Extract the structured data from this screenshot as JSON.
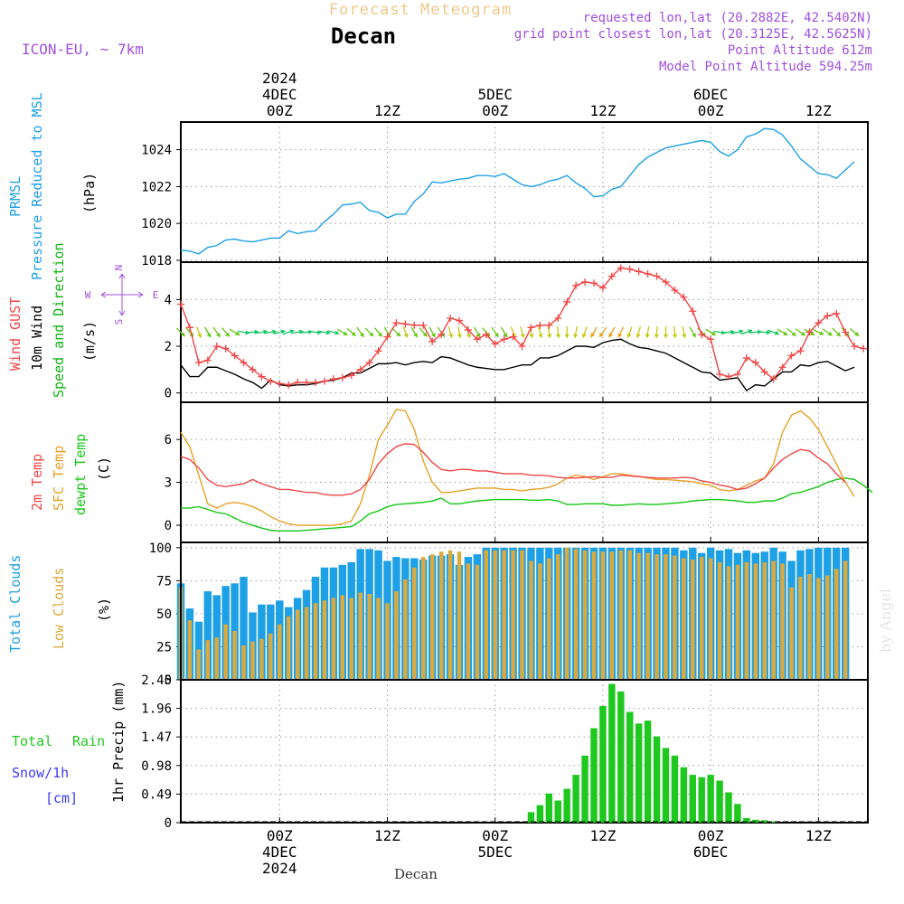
{
  "header": {
    "title": "Forecast Meteogram",
    "location": "Decan",
    "model": "ICON-EU, ~ 7km",
    "requested": "requested lon,lat (20.2882E, 42.5402N)",
    "gridpoint": "grid point closest lon,lat (20.3125E, 42.5625N)",
    "point_alt": "Point Altitude 612m",
    "model_alt": "Model Point Altitude 594.25m",
    "watermark": "by Angel",
    "bottom_name": "Decan"
  },
  "colors": {
    "pressure": "#1ea0e6",
    "gust": "#f04646",
    "wind": "#000000",
    "dir_label": "#14b414",
    "temp2m": "#f04646",
    "sfc": "#e6a028",
    "dewpt": "#14c814",
    "total_cloud": "#1ea0e6",
    "low_cloud": "#dcaa3c",
    "rain": "#1ec81e",
    "snow": "#3c3cf0",
    "compass": "#a050dc",
    "info": "#a050dc",
    "title": "#f0c88c"
  },
  "time_axis": {
    "top_ticks": [
      {
        "h": 0,
        "lines": [
          "2024",
          "4DEC",
          "00Z"
        ]
      },
      {
        "h": 12,
        "lines": [
          "12Z"
        ]
      },
      {
        "h": 24,
        "lines": [
          "5DEC",
          "00Z"
        ]
      },
      {
        "h": 36,
        "lines": [
          "12Z"
        ]
      },
      {
        "h": 48,
        "lines": [
          "6DEC",
          "00Z"
        ]
      },
      {
        "h": 60,
        "lines": [
          "12Z"
        ]
      }
    ],
    "bottom_ticks": [
      {
        "h": 0,
        "lines": [
          "00Z",
          "4DEC",
          "2024"
        ]
      },
      {
        "h": 12,
        "lines": [
          "12Z"
        ]
      },
      {
        "h": 24,
        "lines": [
          "00Z",
          "5DEC"
        ]
      },
      {
        "h": 36,
        "lines": [
          "12Z"
        ]
      },
      {
        "h": 48,
        "lines": [
          "00Z",
          "6DEC"
        ]
      },
      {
        "h": 60,
        "lines": [
          "12Z"
        ]
      }
    ]
  },
  "chart_data": [
    {
      "type": "line",
      "title": "PRMSL Pressure Reduced to MSL",
      "label_lines": [
        "PRMSL",
        "Pressure Reduced to MSL"
      ],
      "ylabel": "(hPa)",
      "ylim": [
        1017.9,
        1025.5
      ],
      "yticks": [
        1018,
        1020,
        1022,
        1024
      ],
      "x_start": -11,
      "x_step": 1,
      "series": [
        {
          "name": "PRMSL",
          "values": [
            1018.55,
            1018.5,
            1018.35,
            1018.7,
            1018.8,
            1019.1,
            1019.15,
            1019.05,
            1019.0,
            1019.1,
            1019.2,
            1019.2,
            1019.6,
            1019.45,
            1019.55,
            1019.6,
            1020.1,
            1020.5,
            1021.0,
            1021.05,
            1021.15,
            1020.7,
            1020.6,
            1020.3,
            1020.5,
            1020.5,
            1021.2,
            1021.6,
            1022.25,
            1022.2,
            1022.3,
            1022.4,
            1022.45,
            1022.6,
            1022.6,
            1022.55,
            1022.7,
            1022.4,
            1022.1,
            1022.0,
            1022.1,
            1022.3,
            1022.4,
            1022.6,
            1022.2,
            1021.9,
            1021.45,
            1021.5,
            1021.85,
            1022.0,
            1022.6,
            1023.2,
            1023.6,
            1023.85,
            1024.1,
            1024.2,
            1024.3,
            1024.4,
            1024.5,
            1024.4,
            1023.9,
            1023.65,
            1024.0,
            1024.7,
            1024.85,
            1025.15,
            1025.1,
            1024.8,
            1024.2,
            1023.5,
            1023.1,
            1022.7,
            1022.65,
            1022.45,
            1022.9,
            1023.35
          ]
        }
      ]
    },
    {
      "type": "line",
      "title": "Wind GUST / 10m Wind Speed and Direction",
      "label_lines": [
        "Wind GUST",
        "10m Wind",
        "Speed and Direction"
      ],
      "ylabel": "(m/s)",
      "ylim": [
        -0.4,
        5.6
      ],
      "yticks": [
        0,
        2,
        4
      ],
      "compass": {
        "w": "W",
        "e": "E",
        "n": "N",
        "s": "S"
      },
      "x_start": -11,
      "x_step": 1,
      "series": [
        {
          "name": "Wind GUST",
          "values": [
            3.8,
            2.8,
            1.3,
            1.4,
            2.0,
            1.9,
            1.6,
            1.3,
            1.0,
            0.7,
            0.5,
            0.4,
            0.35,
            0.45,
            0.45,
            0.45,
            0.5,
            0.6,
            0.65,
            0.75,
            1.0,
            1.3,
            1.8,
            2.4,
            3.0,
            2.95,
            2.9,
            2.9,
            2.2,
            2.5,
            3.2,
            3.1,
            2.7,
            2.3,
            2.5,
            2.1,
            2.3,
            2.4,
            2.0,
            2.8,
            2.9,
            2.9,
            3.2,
            3.9,
            4.6,
            4.75,
            4.7,
            4.5,
            5.0,
            5.35,
            5.3,
            5.2,
            5.1,
            5.0,
            4.75,
            4.4,
            4.1,
            3.5,
            2.5,
            2.3,
            0.8,
            0.7,
            0.8,
            1.5,
            1.3,
            0.9,
            0.6,
            1.1,
            1.6,
            1.8,
            2.6,
            3.0,
            3.3,
            3.4,
            2.6,
            2.0,
            1.9
          ]
        },
        {
          "name": "10m Wind",
          "values": [
            1.2,
            0.7,
            0.7,
            1.1,
            1.1,
            0.95,
            0.8,
            0.6,
            0.45,
            0.2,
            0.55,
            0.35,
            0.3,
            0.35,
            0.35,
            0.4,
            0.5,
            0.55,
            0.65,
            0.85,
            0.85,
            1.05,
            1.25,
            1.25,
            1.3,
            1.2,
            1.3,
            1.35,
            1.3,
            1.55,
            1.5,
            1.35,
            1.2,
            1.1,
            1.05,
            1.0,
            1.0,
            1.1,
            1.2,
            1.2,
            1.5,
            1.5,
            1.6,
            1.8,
            2.0,
            2.0,
            1.95,
            2.15,
            2.25,
            2.3,
            2.1,
            1.95,
            1.9,
            1.8,
            1.7,
            1.5,
            1.3,
            1.1,
            0.9,
            0.85,
            0.55,
            0.6,
            0.65,
            0.1,
            0.35,
            0.3,
            0.6,
            0.9,
            0.9,
            1.2,
            1.15,
            1.3,
            1.35,
            1.15,
            0.95,
            1.1
          ]
        },
        {
          "name": "Direction (deg toward)",
          "values": [
            135,
            140,
            160,
            150,
            145,
            140,
            120,
            100,
            85,
            80,
            80,
            75,
            70,
            80,
            85,
            95,
            100,
            105,
            120,
            130,
            145,
            135,
            140,
            150,
            135,
            160,
            150,
            140,
            150,
            145,
            165,
            170,
            165,
            150,
            140,
            145,
            150,
            160,
            165,
            170,
            165,
            170,
            175,
            180,
            190,
            200,
            210,
            215,
            210,
            205,
            200,
            195,
            190,
            185,
            180,
            175,
            170,
            150,
            135,
            120,
            100,
            85,
            75,
            70,
            85,
            95,
            110,
            120,
            130,
            125,
            120,
            115,
            125,
            135,
            140,
            130
          ]
        }
      ]
    },
    {
      "type": "line",
      "title": "2m Temp / SFC Temp / dewpt Temp",
      "label_lines": [
        "2m Temp",
        "SFC Temp",
        "dewpt Temp"
      ],
      "ylabel": "(C)",
      "ylim": [
        -1.2,
        8.6
      ],
      "yticks": [
        0,
        3,
        6
      ],
      "x_start": -11,
      "x_step": 1,
      "series": [
        {
          "name": "2m Temp",
          "values": [
            4.8,
            4.6,
            4.0,
            3.2,
            2.8,
            2.7,
            2.8,
            2.9,
            3.2,
            2.9,
            2.7,
            2.5,
            2.5,
            2.4,
            2.3,
            2.3,
            2.15,
            2.1,
            2.1,
            2.2,
            2.5,
            3.2,
            4.3,
            5.0,
            5.5,
            5.7,
            5.65,
            5.1,
            4.4,
            3.9,
            3.8,
            3.9,
            3.9,
            3.8,
            3.8,
            3.7,
            3.6,
            3.6,
            3.6,
            3.5,
            3.5,
            3.45,
            3.35,
            3.3,
            3.3,
            3.35,
            3.4,
            3.35,
            3.35,
            3.5,
            3.45,
            3.4,
            3.35,
            3.3,
            3.3,
            3.3,
            3.35,
            3.3,
            3.1,
            3.0,
            2.8,
            2.7,
            2.5,
            2.6,
            2.9,
            3.3,
            4.0,
            4.6,
            5.0,
            5.3,
            5.2,
            4.7,
            4.3,
            3.6,
            3.0
          ]
        },
        {
          "name": "SFC Temp",
          "values": [
            6.5,
            5.5,
            3.5,
            1.5,
            1.2,
            1.5,
            1.6,
            1.5,
            1.3,
            1.0,
            0.6,
            0.3,
            0.1,
            0.0,
            0.0,
            0.0,
            0.0,
            0.0,
            0.1,
            0.3,
            1.5,
            3.5,
            6.0,
            7.0,
            8.1,
            8.0,
            6.7,
            4.5,
            3.0,
            2.3,
            2.3,
            2.4,
            2.5,
            2.6,
            2.6,
            2.6,
            2.5,
            2.5,
            2.4,
            2.5,
            2.55,
            2.65,
            2.9,
            3.3,
            3.5,
            3.4,
            3.2,
            3.4,
            3.6,
            3.6,
            3.5,
            3.4,
            3.3,
            3.2,
            3.2,
            3.15,
            3.1,
            3.05,
            2.9,
            2.8,
            2.5,
            2.4,
            2.5,
            2.8,
            3.1,
            3.3,
            4.3,
            6.5,
            7.7,
            8.0,
            7.5,
            6.7,
            5.5,
            4.3,
            3.0,
            2.0
          ]
        },
        {
          "name": "dewpt Temp",
          "values": [
            1.2,
            1.2,
            1.3,
            1.1,
            0.9,
            0.8,
            0.5,
            0.2,
            0.0,
            -0.2,
            -0.35,
            -0.4,
            -0.4,
            -0.4,
            -0.35,
            -0.3,
            -0.25,
            -0.2,
            -0.15,
            -0.1,
            0.3,
            0.8,
            1.0,
            1.3,
            1.45,
            1.5,
            1.55,
            1.6,
            1.7,
            1.9,
            1.5,
            1.5,
            1.6,
            1.7,
            1.75,
            1.8,
            1.8,
            1.8,
            1.8,
            1.75,
            1.75,
            1.8,
            1.7,
            1.45,
            1.45,
            1.5,
            1.5,
            1.5,
            1.4,
            1.4,
            1.45,
            1.5,
            1.45,
            1.45,
            1.5,
            1.55,
            1.6,
            1.7,
            1.75,
            1.8,
            1.8,
            1.75,
            1.7,
            1.6,
            1.6,
            1.7,
            1.7,
            1.9,
            2.2,
            2.3,
            2.5,
            2.7,
            3.0,
            3.2,
            3.3,
            3.2,
            2.8,
            2.3
          ]
        }
      ]
    },
    {
      "type": "bar",
      "title": "Total Clouds / Low Clouds",
      "label_lines": [
        "Total Clouds",
        "Low Clouds"
      ],
      "ylabel": "(%)",
      "ylim": [
        0,
        104
      ],
      "yticks": [
        0,
        25,
        50,
        75,
        100
      ],
      "x_start": -11,
      "x_step": 1,
      "series": [
        {
          "name": "Total Clouds",
          "values": [
            73,
            54,
            44,
            67,
            64,
            71,
            73,
            78,
            51,
            57,
            57,
            60,
            55,
            62,
            68,
            78,
            85,
            85,
            87,
            89,
            99,
            99,
            98,
            90,
            93,
            92,
            92,
            91,
            94,
            94,
            95,
            87,
            93,
            95,
            100,
            100,
            100,
            100,
            100,
            100,
            100,
            100,
            100,
            100,
            100,
            100,
            100,
            100,
            100,
            100,
            100,
            100,
            100,
            100,
            100,
            100,
            98,
            100,
            96,
            100,
            98,
            99,
            96,
            98,
            96,
            97,
            100,
            97,
            90,
            98,
            99,
            100,
            100,
            100,
            100
          ]
        },
        {
          "name": "Low Clouds",
          "values": [
            70,
            45,
            23,
            30,
            32,
            42,
            37,
            26,
            29,
            31,
            35,
            42,
            48,
            53,
            55,
            58,
            60,
            62,
            64,
            62,
            66,
            65,
            62,
            58,
            67,
            76,
            85,
            93,
            95,
            97,
            98,
            97,
            88,
            87,
            98,
            98,
            98,
            98,
            98,
            90,
            88,
            92,
            95,
            100,
            99,
            98,
            97,
            97,
            97,
            98,
            98,
            96,
            96,
            95,
            95,
            94,
            92,
            91,
            93,
            92,
            89,
            86,
            87,
            89,
            88,
            89,
            90,
            88,
            70,
            78,
            80,
            77,
            79,
            84,
            90
          ]
        }
      ]
    },
    {
      "type": "bar",
      "title": "1hr Precip (mm)",
      "label_lines": [
        "Total",
        "Rain",
        "Snow/1h",
        "[cm]"
      ],
      "ylabel": "1hr Precip (mm)",
      "ylim": [
        0,
        2.45
      ],
      "yticks": [
        "0",
        "0.49",
        "0.98",
        "1.47",
        "1.96",
        "2.45"
      ],
      "x_start": -11,
      "x_step": 1,
      "series": [
        {
          "name": "Rain",
          "values": [
            0,
            0,
            0,
            0,
            0,
            0,
            0,
            0,
            0,
            0,
            0,
            0,
            0,
            0,
            0,
            0,
            0,
            0,
            0,
            0,
            0,
            0,
            0,
            0,
            0,
            0,
            0,
            0,
            0,
            0,
            0,
            0,
            0,
            0,
            0,
            0,
            0,
            0,
            0,
            0.18,
            0.3,
            0.5,
            0.38,
            0.58,
            0.82,
            1.15,
            1.62,
            2.0,
            2.38,
            2.25,
            1.9,
            1.7,
            1.75,
            1.48,
            1.28,
            1.15,
            0.95,
            0.82,
            0.78,
            0.82,
            0.72,
            0.52,
            0.32,
            0.08,
            0.05,
            0.04,
            0.02,
            0,
            0,
            0,
            0,
            0,
            0,
            0,
            0,
            0
          ]
        },
        {
          "name": "Snow",
          "values": [
            0,
            0,
            0,
            0,
            0,
            0,
            0,
            0,
            0,
            0,
            0,
            0,
            0,
            0,
            0,
            0,
            0,
            0,
            0,
            0,
            0,
            0,
            0,
            0,
            0,
            0,
            0,
            0,
            0,
            0,
            0,
            0,
            0,
            0,
            0,
            0,
            0,
            0,
            0,
            0,
            0,
            0,
            0,
            0,
            0,
            0,
            0,
            0,
            0,
            0,
            0,
            0,
            0,
            0,
            0,
            0,
            0,
            0,
            0,
            0,
            0,
            0,
            0,
            0,
            0,
            0,
            0,
            0,
            0,
            0,
            0,
            0,
            0,
            0,
            0,
            0
          ]
        }
      ]
    }
  ]
}
